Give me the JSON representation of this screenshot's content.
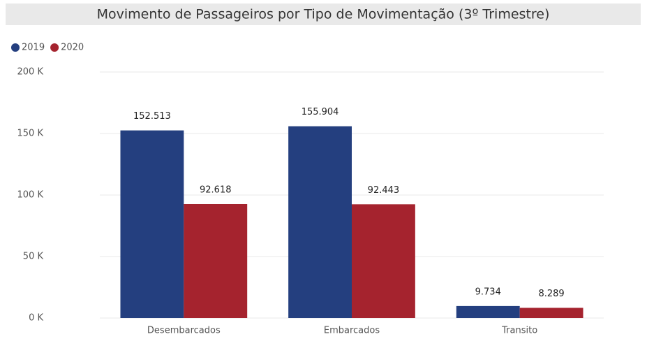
{
  "chart_data": {
    "type": "bar",
    "title": "Movimento de Passageiros por Tipo de Movimentação (3º Trimestre)",
    "categories": [
      "Desembarcados",
      "Embarcados",
      "Transito"
    ],
    "series": [
      {
        "name": "2019",
        "color": "#243f7f",
        "values": [
          152513,
          155904,
          9734
        ],
        "value_labels": [
          "152.513",
          "155.904",
          "9.734"
        ]
      },
      {
        "name": "2020",
        "color": "#a5232e",
        "values": [
          92618,
          92443,
          8289
        ],
        "value_labels": [
          "92.618",
          "92.443",
          "8.289"
        ]
      }
    ],
    "ylim": [
      0,
      200000
    ],
    "yticks": [
      {
        "value": 0,
        "label": "0 K"
      },
      {
        "value": 50000,
        "label": "50 K"
      },
      {
        "value": 100000,
        "label": "100 K"
      },
      {
        "value": 150000,
        "label": "150 K"
      },
      {
        "value": 200000,
        "label": "200 K"
      }
    ],
    "grid": true,
    "legend": "top-left"
  }
}
